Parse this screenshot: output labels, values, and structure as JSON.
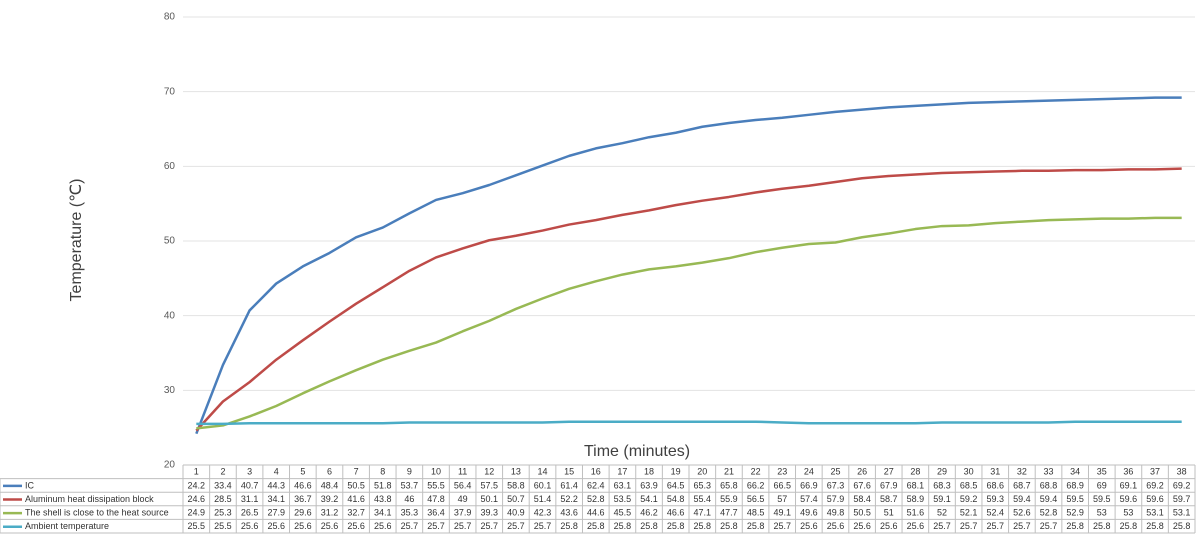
{
  "chart_data": {
    "type": "line",
    "x_label": "Time (minutes)",
    "y_label": "Temperature (℃)",
    "categories": [
      "1",
      "2",
      "3",
      "4",
      "5",
      "6",
      "7",
      "8",
      "9",
      "10",
      "11",
      "12",
      "13",
      "14",
      "15",
      "16",
      "17",
      "18",
      "19",
      "20",
      "21",
      "22",
      "23",
      "24",
      "25",
      "26",
      "27",
      "28",
      "29",
      "30",
      "31",
      "32",
      "33",
      "34",
      "35",
      "36",
      "37",
      "38"
    ],
    "ylim": [
      20,
      80
    ],
    "yticks": [
      20,
      30,
      40,
      50,
      60,
      70,
      80
    ],
    "grid": true,
    "series": [
      {
        "name": "IC",
        "color": "#4a7ebb",
        "values": [
          24.2,
          33.4,
          40.7,
          44.3,
          46.6,
          48.4,
          50.5,
          51.8,
          53.7,
          55.5,
          56.4,
          57.5,
          58.8,
          60.1,
          61.4,
          62.4,
          63.1,
          63.9,
          64.5,
          65.3,
          65.8,
          66.2,
          66.5,
          66.9,
          67.3,
          67.6,
          67.9,
          68.1,
          68.3,
          68.5,
          68.6,
          68.7,
          68.8,
          68.9,
          69,
          69.1,
          69.2,
          69.2
        ]
      },
      {
        "name": "Aluminum heat dissipation block",
        "color": "#be4b48",
        "values": [
          24.6,
          28.5,
          31.1,
          34.1,
          36.7,
          39.2,
          41.6,
          43.8,
          46,
          47.8,
          49,
          50.1,
          50.7,
          51.4,
          52.2,
          52.8,
          53.5,
          54.1,
          54.8,
          55.4,
          55.9,
          56.5,
          57,
          57.4,
          57.9,
          58.4,
          58.7,
          58.9,
          59.1,
          59.2,
          59.3,
          59.4,
          59.4,
          59.5,
          59.5,
          59.6,
          59.6,
          59.7
        ]
      },
      {
        "name": "The shell is close to the heat source",
        "color": "#98b954",
        "values": [
          24.9,
          25.3,
          26.5,
          27.9,
          29.6,
          31.2,
          32.7,
          34.1,
          35.3,
          36.4,
          37.9,
          39.3,
          40.9,
          42.3,
          43.6,
          44.6,
          45.5,
          46.2,
          46.6,
          47.1,
          47.7,
          48.5,
          49.1,
          49.6,
          49.8,
          50.5,
          51,
          51.6,
          52,
          52.1,
          52.4,
          52.6,
          52.8,
          52.9,
          53,
          53,
          53.1,
          53.1
        ]
      },
      {
        "name": "Ambient temperature",
        "color": "#4bacc6",
        "values": [
          25.5,
          25.5,
          25.6,
          25.6,
          25.6,
          25.6,
          25.6,
          25.6,
          25.7,
          25.7,
          25.7,
          25.7,
          25.7,
          25.7,
          25.8,
          25.8,
          25.8,
          25.8,
          25.8,
          25.8,
          25.8,
          25.8,
          25.7,
          25.6,
          25.6,
          25.6,
          25.6,
          25.6,
          25.7,
          25.7,
          25.7,
          25.7,
          25.7,
          25.8,
          25.8,
          25.8,
          25.8,
          25.8
        ]
      }
    ]
  }
}
